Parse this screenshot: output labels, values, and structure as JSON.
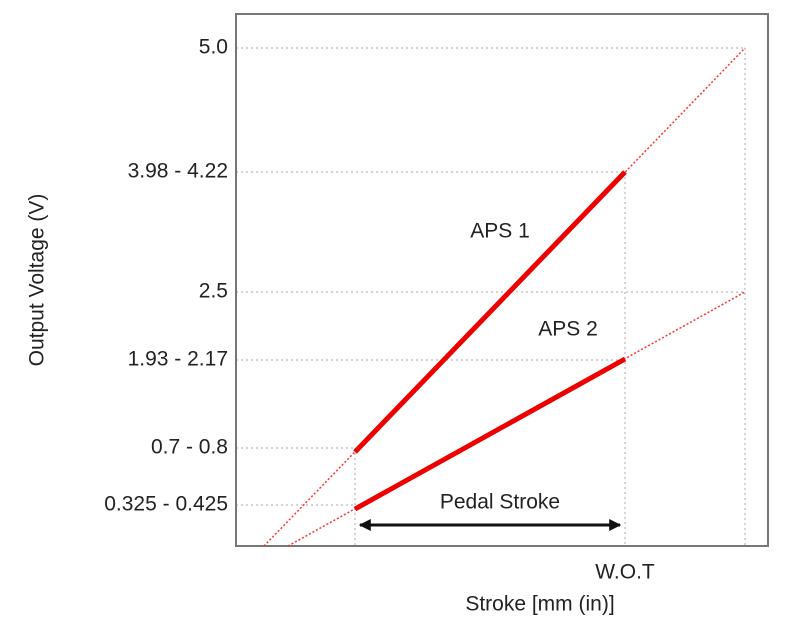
{
  "y_axis": {
    "label": "Output Voltage (V)",
    "ticks": [
      "5.0",
      "3.98 - 4.22",
      "2.5",
      "1.93 - 2.17",
      "0.7 - 0.8",
      "0.325 - 0.425"
    ]
  },
  "x_axis": {
    "label": "Stroke [mm (in)]",
    "ticks": [
      "W.O.T"
    ]
  },
  "lines": [
    {
      "label": "APS 1"
    },
    {
      "label": "APS 2"
    }
  ],
  "annotation": "Pedal Stroke"
}
